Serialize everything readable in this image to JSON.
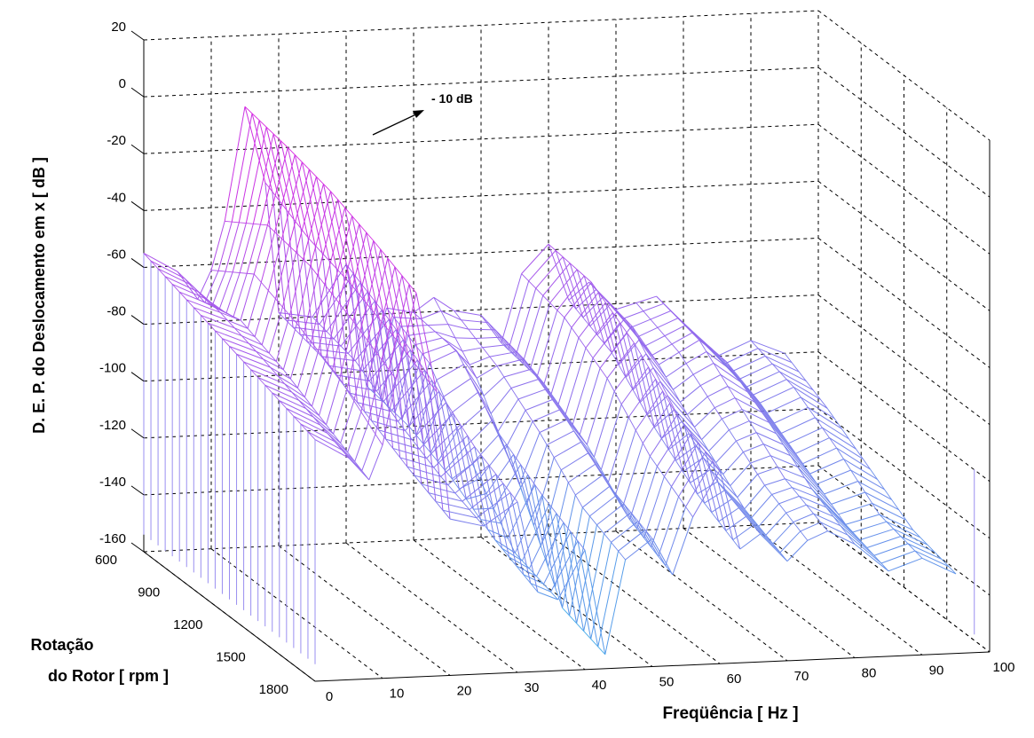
{
  "chart_data": {
    "type": "waterfall-3d",
    "zlabel": "D. E. P.  do Deslocamento em x [ dB ]",
    "xlabel": "Freqüência [ Hz ]",
    "ylabel_line1": "Rotação",
    "ylabel_line2": "do Rotor [ rpm ]",
    "annotation": "- 10 dB",
    "x_ticks": [
      "0",
      "10",
      "20",
      "30",
      "40",
      "50",
      "60",
      "70",
      "80",
      "90",
      "100"
    ],
    "y_ticks": [
      "600",
      "900",
      "1200",
      "1500",
      "1800"
    ],
    "z_ticks": [
      "20",
      "0",
      "-20",
      "-40",
      "-60",
      "-80",
      "-100",
      "-120",
      "-140",
      "-160"
    ],
    "xlim": [
      0,
      100
    ],
    "ylim": [
      600,
      1800
    ],
    "zlim": [
      -160,
      20
    ],
    "grid": true,
    "colormap": [
      "#3fb2e8",
      "#9966ee",
      "#e020e0"
    ],
    "rotation_rpm": [
      600,
      900,
      1200,
      1500,
      1800
    ],
    "frequency_hz": [
      0,
      5,
      8,
      10,
      12,
      15,
      18,
      20,
      25,
      30,
      33,
      36,
      40,
      43,
      46,
      50,
      53,
      56,
      60,
      63,
      66,
      70,
      73,
      76,
      80,
      85,
      90,
      95
    ],
    "psd_db": [
      [
        -55,
        -62,
        -72,
        -62,
        -45,
        -5,
        -32,
        -78,
        -80,
        -62,
        -105,
        -78,
        -80,
        -75,
        -80,
        -82,
        -92,
        -68,
        -58,
        -78,
        -72,
        -82,
        -80,
        -78,
        -88,
        -100,
        -95,
        -100
      ],
      [
        -60,
        -65,
        -68,
        -52,
        -35,
        -8,
        -40,
        -82,
        -84,
        -70,
        -108,
        -86,
        -82,
        -92,
        -88,
        -86,
        -95,
        -72,
        -60,
        -85,
        -76,
        -90,
        -86,
        -82,
        -90,
        -105,
        -100,
        -108
      ],
      [
        -65,
        -70,
        -74,
        -58,
        -38,
        -12,
        -45,
        -90,
        -94,
        -80,
        -115,
        -110,
        -100,
        -118,
        -100,
        -96,
        -105,
        -82,
        -70,
        -100,
        -94,
        -105,
        -98,
        -95,
        -100,
        -115,
        -110,
        -118
      ],
      [
        -70,
        -76,
        -82,
        -66,
        -46,
        -18,
        -52,
        -98,
        -102,
        -92,
        -125,
        -130,
        -110,
        -150,
        -115,
        -108,
        -120,
        -98,
        -84,
        -112,
        -108,
        -118,
        -110,
        -108,
        -112,
        -125,
        -122,
        -128
      ],
      [
        -75,
        -82,
        -90,
        -78,
        -55,
        -25,
        -60,
        -105,
        -108,
        -100,
        -132,
        -135,
        -118,
        -155,
        -122,
        -115,
        -128,
        -108,
        -92,
        -120,
        -115,
        -125,
        -118,
        -115,
        -120,
        -130,
        -126,
        -132
      ]
    ]
  }
}
